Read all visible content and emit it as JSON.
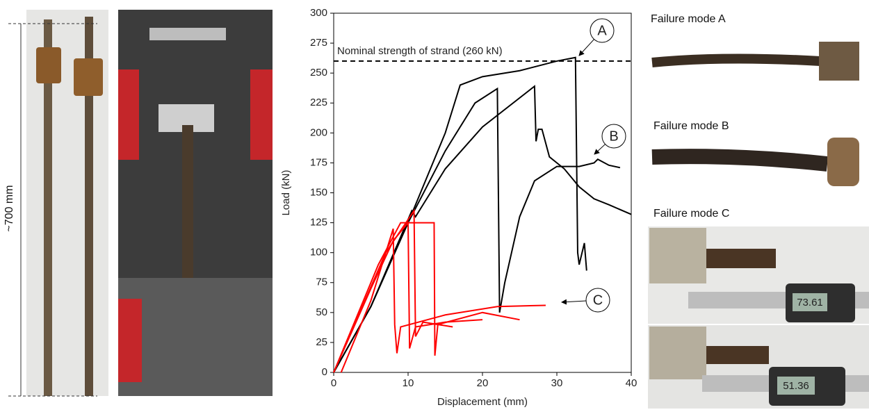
{
  "chart_data": {
    "type": "line",
    "xlabel": "Displacement (mm)",
    "ylabel": "Load (kN)",
    "xlim": [
      0,
      40
    ],
    "ylim": [
      0,
      300
    ],
    "xticks": [
      0,
      10,
      20,
      30,
      40
    ],
    "yticks": [
      0,
      25,
      50,
      75,
      100,
      125,
      150,
      175,
      200,
      225,
      250,
      275,
      300
    ],
    "reference_line": {
      "value": 260,
      "label": "Nominal strength of strand (260 kN)"
    },
    "annotations": [
      {
        "text": "A"
      },
      {
        "text": "B"
      },
      {
        "text": "C"
      }
    ],
    "series": [
      {
        "color": "#000000",
        "x": [
          0,
          5,
          10,
          15,
          17,
          20,
          25,
          30,
          32.5,
          32.8,
          33,
          33.7,
          34
        ],
        "values": [
          0,
          55,
          125,
          200,
          240,
          247,
          252,
          260,
          263,
          100,
          90,
          108,
          85
        ]
      },
      {
        "color": "#000000",
        "x": [
          0,
          5,
          10,
          15,
          19,
          22,
          22.3,
          23,
          25,
          27,
          30,
          33,
          35,
          35.5,
          37,
          38.5
        ],
        "values": [
          0,
          55,
          125,
          185,
          225,
          237,
          50,
          75,
          130,
          160,
          172,
          172,
          175,
          178,
          173,
          171
        ]
      },
      {
        "color": "#000000",
        "x": [
          0,
          5,
          10.5,
          11,
          15,
          20,
          27,
          27.2,
          27.5,
          28,
          29,
          31,
          33,
          35,
          37,
          40
        ],
        "values": [
          0,
          55,
          135,
          130,
          170,
          205,
          239,
          193,
          203,
          203,
          180,
          170,
          155,
          145,
          140,
          132
        ]
      },
      {
        "color": "#ff0000",
        "x": [
          0,
          5,
          8,
          10,
          10.2,
          11,
          15,
          20
        ],
        "values": [
          0,
          70,
          110,
          125,
          20,
          38,
          42,
          44
        ]
      },
      {
        "color": "#ff0000",
        "x": [
          0,
          6,
          9,
          13.5,
          13.6,
          14,
          20,
          25
        ],
        "values": [
          0,
          90,
          125,
          125,
          14,
          40,
          50,
          44
        ]
      },
      {
        "color": "#ff0000",
        "x": [
          1,
          5,
          8,
          8.2,
          8.5,
          9,
          15,
          22,
          28.5
        ],
        "values": [
          0,
          60,
          120,
          40,
          16,
          38,
          48,
          55,
          56
        ]
      },
      {
        "color": "#ff0000",
        "x": [
          0,
          7,
          10.8,
          11,
          12,
          16
        ],
        "values": [
          0,
          100,
          135,
          30,
          42,
          38
        ]
      }
    ]
  },
  "photos": {
    "length": "~700 mm",
    "mode_a": "Failure mode A",
    "mode_b": "Failure mode B",
    "mode_c": "Failure mode C",
    "reading_1": "73.61",
    "reading_2": "51.36"
  }
}
